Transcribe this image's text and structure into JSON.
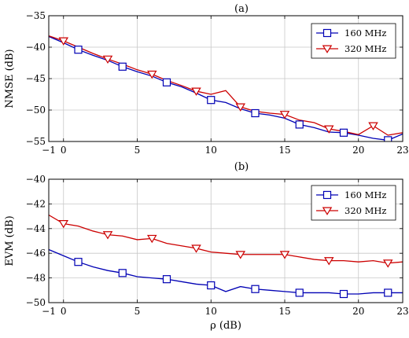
{
  "chart_data": [
    {
      "type": "line",
      "title": "(a)",
      "xlabel": "",
      "ylabel": "NMSE (dB)",
      "xlim": [
        -1,
        23
      ],
      "ylim": [
        -55,
        -35
      ],
      "xticks": [
        -1,
        0,
        5,
        10,
        15,
        20,
        23
      ],
      "xtick_labels": [
        "−1",
        "0",
        "5",
        "10",
        "15",
        "20",
        "23"
      ],
      "yticks": [
        -55,
        -50,
        -45,
        -40,
        -35
      ],
      "ytick_labels": [
        "−55",
        "−50",
        "−45",
        "−40",
        "−35"
      ],
      "grid": true,
      "legend_position": "top-right",
      "series": [
        {
          "name": "160 MHz",
          "color": "#0000b4",
          "marker": "square",
          "x": [
            -1,
            0,
            1,
            2,
            3,
            4,
            5,
            6,
            7,
            8,
            9,
            10,
            11,
            12,
            13,
            14,
            15,
            16,
            17,
            18,
            19,
            20,
            21,
            22,
            23
          ],
          "y": [
            -38.3,
            -39.3,
            -40.4,
            -41.3,
            -42.1,
            -43.1,
            -43.9,
            -44.6,
            -45.6,
            -46.3,
            -47.3,
            -48.4,
            -48.8,
            -49.8,
            -50.5,
            -50.8,
            -51.3,
            -52.3,
            -52.8,
            -53.5,
            -53.6,
            -54.0,
            -54.5,
            -54.8,
            -53.8
          ],
          "marker_x": [
            1,
            4,
            7,
            10,
            13,
            16,
            19,
            22
          ],
          "marker_y": [
            -40.4,
            -43.1,
            -45.6,
            -48.4,
            -50.5,
            -52.3,
            -53.6,
            -54.8
          ]
        },
        {
          "name": "320 MHz",
          "color": "#cc0000",
          "marker": "triangle-down",
          "x": [
            -1,
            0,
            1,
            2,
            3,
            4,
            5,
            6,
            7,
            8,
            9,
            10,
            11,
            12,
            13,
            14,
            15,
            16,
            17,
            18,
            19,
            20,
            21,
            22,
            23
          ],
          "y": [
            -38.2,
            -39.0,
            -40.0,
            -41.0,
            -41.9,
            -42.7,
            -43.6,
            -44.3,
            -45.3,
            -46.1,
            -47.0,
            -47.5,
            -46.9,
            -49.5,
            -50.2,
            -50.5,
            -50.7,
            -51.6,
            -52.0,
            -53.0,
            -53.4,
            -53.9,
            -52.5,
            -54.0,
            -53.6
          ],
          "marker_x": [
            0,
            3,
            6,
            9,
            12,
            15,
            18,
            21
          ],
          "marker_y": [
            -39.0,
            -41.9,
            -44.3,
            -47.0,
            -49.5,
            -50.7,
            -53.0,
            -52.5
          ]
        }
      ]
    },
    {
      "type": "line",
      "title": "(b)",
      "xlabel": "ρ (dB)",
      "ylabel": "EVM (dB)",
      "xlim": [
        -1,
        23
      ],
      "ylim": [
        -50,
        -40
      ],
      "xticks": [
        -1,
        0,
        5,
        10,
        15,
        20,
        23
      ],
      "xtick_labels": [
        "−1",
        "0",
        "5",
        "10",
        "15",
        "20",
        "23"
      ],
      "yticks": [
        -50,
        -48,
        -46,
        -44,
        -42,
        -40
      ],
      "ytick_labels": [
        "−50",
        "−48",
        "−46",
        "−44",
        "−42",
        "−40"
      ],
      "grid": true,
      "legend_position": "top-right",
      "series": [
        {
          "name": "160 MHz",
          "color": "#0000b4",
          "marker": "square",
          "x": [
            -1,
            0,
            1,
            2,
            3,
            4,
            5,
            6,
            7,
            8,
            9,
            10,
            11,
            12,
            13,
            14,
            15,
            16,
            17,
            18,
            19,
            20,
            21,
            22,
            23
          ],
          "y": [
            -45.7,
            -46.2,
            -46.7,
            -47.1,
            -47.4,
            -47.6,
            -47.9,
            -48.0,
            -48.1,
            -48.3,
            -48.5,
            -48.6,
            -49.1,
            -48.7,
            -48.9,
            -49.0,
            -49.1,
            -49.2,
            -49.2,
            -49.2,
            -49.3,
            -49.3,
            -49.2,
            -49.2,
            -49.2
          ],
          "marker_x": [
            1,
            4,
            7,
            10,
            13,
            16,
            19,
            22
          ],
          "marker_y": [
            -46.7,
            -47.6,
            -48.1,
            -48.6,
            -48.9,
            -49.2,
            -49.3,
            -49.2
          ]
        },
        {
          "name": "320 MHz",
          "color": "#cc0000",
          "marker": "triangle-down",
          "x": [
            -1,
            0,
            1,
            2,
            3,
            4,
            5,
            6,
            7,
            8,
            9,
            10,
            11,
            12,
            13,
            14,
            15,
            16,
            17,
            18,
            19,
            20,
            21,
            22,
            23
          ],
          "y": [
            -42.9,
            -43.6,
            -43.8,
            -44.2,
            -44.5,
            -44.6,
            -44.9,
            -44.8,
            -45.2,
            -45.4,
            -45.6,
            -45.9,
            -46.0,
            -46.1,
            -46.1,
            -46.1,
            -46.1,
            -46.3,
            -46.5,
            -46.6,
            -46.6,
            -46.7,
            -46.6,
            -46.8,
            -46.7
          ],
          "marker_x": [
            0,
            3,
            6,
            9,
            12,
            15,
            18,
            22
          ],
          "marker_y": [
            -43.6,
            -44.5,
            -44.8,
            -45.6,
            -46.1,
            -46.1,
            -46.6,
            -46.8
          ]
        }
      ]
    }
  ]
}
